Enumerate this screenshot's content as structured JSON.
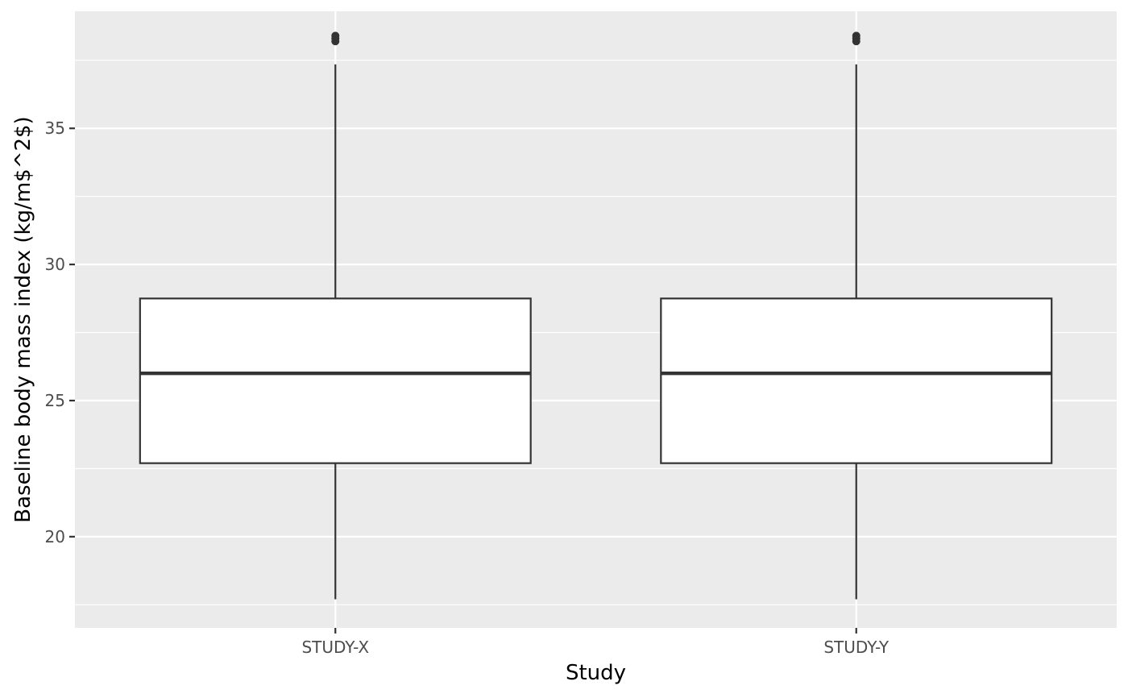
{
  "chart_data": {
    "type": "boxplot",
    "title": "",
    "xlabel": "Study",
    "ylabel": "Baseline body mass index (kg/m$^2$)",
    "categories": [
      "STUDY-X",
      "STUDY-Y"
    ],
    "boxes": [
      {
        "category": "STUDY-X",
        "whisker_low": 17.7,
        "q1": 22.7,
        "median": 26.0,
        "q3": 28.75,
        "whisker_high": 37.35,
        "outliers": [
          38.2,
          38.3,
          38.4
        ]
      },
      {
        "category": "STUDY-Y",
        "whisker_low": 17.7,
        "q1": 22.7,
        "median": 26.0,
        "q3": 28.75,
        "whisker_high": 37.35,
        "outliers": [
          38.2,
          38.3,
          38.4
        ]
      }
    ],
    "ylim": [
      16.65,
      39.3
    ],
    "yticks": [
      20,
      25,
      30,
      35
    ],
    "grid": true,
    "legend": "none",
    "colors": {
      "panel": "#ebebeb",
      "grid": "#ffffff",
      "box_fill": "#ffffff",
      "box_line": "#333333",
      "tick_text": "#4d4d4d"
    }
  }
}
